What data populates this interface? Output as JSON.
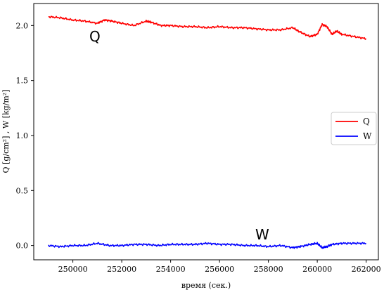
{
  "chart_data": {
    "type": "line",
    "xlabel": "время (сек.)",
    "ylabel": "Q [g/cm²] , W [kg/m²]",
    "xlim": [
      248400,
      262500
    ],
    "ylim": [
      -0.13,
      2.2
    ],
    "xticks": [
      250000,
      252000,
      254000,
      256000,
      258000,
      260000,
      262000
    ],
    "yticks": [
      0.0,
      0.5,
      1.0,
      1.5,
      2.0
    ],
    "xtick_labels": [
      "250000",
      "252000",
      "254000",
      "256000",
      "258000",
      "260000",
      "262000"
    ],
    "ytick_labels": [
      "0.0",
      "0.5",
      "1.0",
      "1.5",
      "2.0"
    ],
    "grid": false,
    "legend_position": "center-right",
    "series": [
      {
        "name": "Q",
        "color": "#ff0000",
        "x": [
          249000,
          249500,
          250000,
          250500,
          251000,
          251300,
          251600,
          252000,
          252500,
          253000,
          253200,
          253600,
          254000,
          254500,
          255000,
          255500,
          256000,
          256500,
          257000,
          257500,
          258000,
          258500,
          259000,
          259300,
          259700,
          260000,
          260200,
          260400,
          260600,
          260800,
          261000,
          261500,
          262000
        ],
        "values": [
          2.08,
          2.07,
          2.05,
          2.04,
          2.02,
          2.05,
          2.04,
          2.02,
          2.0,
          2.04,
          2.03,
          2.0,
          2.0,
          1.99,
          1.99,
          1.98,
          1.99,
          1.98,
          1.98,
          1.97,
          1.96,
          1.96,
          1.98,
          1.94,
          1.9,
          1.92,
          2.01,
          1.99,
          1.92,
          1.95,
          1.92,
          1.9,
          1.88
        ]
      },
      {
        "name": "W",
        "color": "#0000ff",
        "x": [
          249000,
          249500,
          250000,
          250500,
          251000,
          251500,
          252000,
          252500,
          253000,
          253500,
          254000,
          254500,
          255000,
          255500,
          256000,
          256500,
          257000,
          257500,
          258000,
          258500,
          259000,
          259300,
          259700,
          260000,
          260200,
          260400,
          260600,
          261000,
          261500,
          262000
        ],
        "values": [
          0.0,
          -0.01,
          0.0,
          0.0,
          0.02,
          0.0,
          0.0,
          0.01,
          0.01,
          0.0,
          0.01,
          0.01,
          0.01,
          0.02,
          0.01,
          0.01,
          0.0,
          0.0,
          -0.01,
          0.0,
          -0.02,
          -0.01,
          0.01,
          0.02,
          -0.02,
          -0.01,
          0.01,
          0.02,
          0.02,
          0.02
        ]
      }
    ],
    "annotations": [
      {
        "text": "Q",
        "x": 250900,
        "y": 1.9
      },
      {
        "text": "W",
        "x": 257750,
        "y": 0.1
      }
    ]
  }
}
